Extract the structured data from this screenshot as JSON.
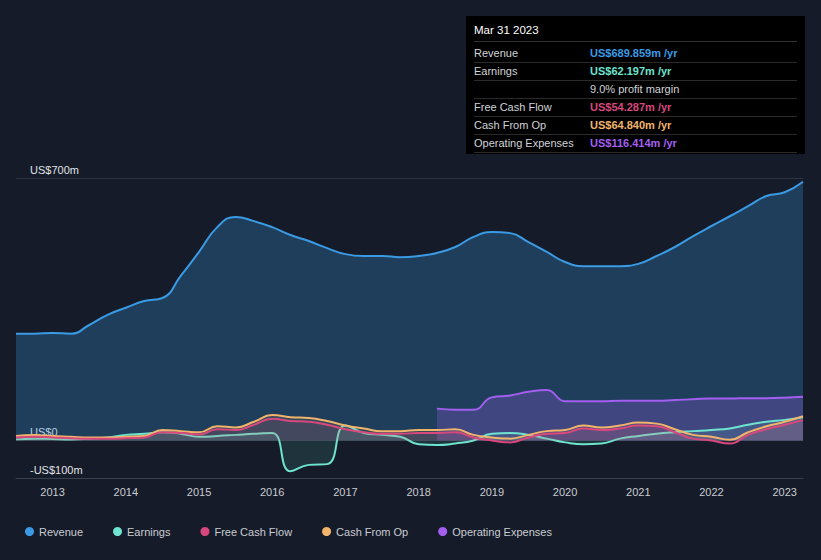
{
  "chart_data": {
    "type": "line",
    "x": [
      2012.5,
      2012.75,
      2013,
      2013.25,
      2013.5,
      2013.75,
      2014,
      2014.25,
      2014.5,
      2014.75,
      2015,
      2015.25,
      2015.5,
      2015.75,
      2016,
      2016.25,
      2016.5,
      2016.75,
      2017,
      2017.25,
      2017.5,
      2017.75,
      2018,
      2018.25,
      2018.5,
      2018.75,
      2019,
      2019.25,
      2019.5,
      2019.75,
      2020,
      2020.25,
      2020.5,
      2020.75,
      2021,
      2021.25,
      2021.5,
      2021.75,
      2022,
      2022.25,
      2022.5,
      2022.75,
      2023,
      2023.25
    ],
    "xlim": [
      2012.5,
      2023.25
    ],
    "xticks": [
      2013,
      2014,
      2015,
      2016,
      2017,
      2018,
      2019,
      2020,
      2021,
      2022,
      2023
    ],
    "ylim": [
      -100,
      700
    ],
    "yticks": [
      {
        "value": -100,
        "label": "-US$100m"
      },
      {
        "value": 0,
        "label": "US$0"
      },
      {
        "value": 700,
        "label": "US$700m"
      }
    ],
    "grid": true,
    "legend": "bottom-left",
    "series": [
      {
        "name": "Revenue",
        "color": "#3a9be4",
        "values": [
          285,
          285,
          287,
          285,
          308,
          335,
          354,
          372,
          380,
          439,
          503,
          569,
          596,
          585,
          569,
          548,
          532,
          513,
          497,
          492,
          492,
          489,
          492,
          500,
          516,
          543,
          556,
          553,
          529,
          503,
          476,
          465,
          465,
          465,
          471,
          492,
          516,
          545,
          572,
          598,
          625,
          652,
          662,
          689.859
        ]
      },
      {
        "name": "Earnings",
        "color": "#6ee3cf",
        "values": [
          3,
          5,
          4,
          3,
          5,
          8,
          15,
          18,
          22,
          18,
          10,
          12,
          15,
          18,
          20,
          -82,
          -65,
          -63,
          40,
          20,
          15,
          10,
          -10,
          -12,
          -8,
          0,
          18,
          20,
          15,
          5,
          -5,
          -10,
          -8,
          5,
          12,
          18,
          22,
          25,
          28,
          32,
          42,
          50,
          55,
          62.197
        ]
      },
      {
        "name": "Free Cash Flow",
        "color": "#d9487d",
        "values": [
          8,
          10,
          8,
          6,
          5,
          5,
          6,
          8,
          22,
          20,
          16,
          30,
          28,
          42,
          58,
          52,
          50,
          42,
          30,
          22,
          18,
          18,
          20,
          20,
          22,
          8,
          0,
          -5,
          8,
          18,
          20,
          32,
          28,
          32,
          40,
          38,
          22,
          5,
          0,
          -8,
          15,
          30,
          42,
          54.287
        ]
      },
      {
        "name": "Cash From Op",
        "color": "#f2b46b",
        "values": [
          12,
          15,
          12,
          10,
          8,
          8,
          10,
          12,
          28,
          25,
          22,
          38,
          35,
          50,
          68,
          62,
          60,
          52,
          40,
          32,
          25,
          25,
          28,
          28,
          30,
          15,
          8,
          5,
          15,
          25,
          28,
          40,
          35,
          40,
          48,
          45,
          30,
          15,
          10,
          2,
          22,
          38,
          50,
          64.84
        ]
      },
      {
        "name": "Operating Expenses",
        "color": "#a35ff0",
        "values": [
          null,
          null,
          null,
          null,
          null,
          null,
          null,
          null,
          null,
          null,
          null,
          null,
          null,
          null,
          null,
          null,
          null,
          null,
          null,
          null,
          null,
          null,
          null,
          85,
          82,
          82,
          115,
          120,
          130,
          135,
          105,
          105,
          105,
          106,
          106,
          106,
          108,
          110,
          112,
          112,
          113,
          113,
          114,
          116.414
        ]
      }
    ],
    "info_box": {
      "title": "Mar 31 2023",
      "rows": [
        {
          "label": "Revenue",
          "value": "US$689.859m /yr",
          "color": "#3a9be4"
        },
        {
          "label": "Earnings",
          "value": "US$62.197m /yr",
          "color": "#6ee3cf",
          "note": "9.0% profit margin"
        },
        {
          "label": "Free Cash Flow",
          "value": "US$54.287m /yr",
          "color": "#d9487d"
        },
        {
          "label": "Cash From Op",
          "value": "US$64.840m /yr",
          "color": "#f2b46b"
        },
        {
          "label": "Operating Expenses",
          "value": "US$116.414m /yr",
          "color": "#a35ff0"
        }
      ]
    }
  }
}
